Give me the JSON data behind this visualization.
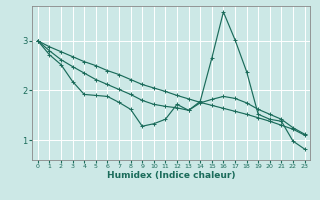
{
  "xlabel": "Humidex (Indice chaleur)",
  "bg_color": "#cce8e6",
  "grid_color": "#b0d8d5",
  "line_color": "#1a6b5a",
  "xlim": [
    -0.5,
    23.5
  ],
  "ylim": [
    0.6,
    3.7
  ],
  "yticks": [
    1,
    2,
    3
  ],
  "xticks": [
    0,
    1,
    2,
    3,
    4,
    5,
    6,
    7,
    8,
    9,
    10,
    11,
    12,
    13,
    14,
    15,
    16,
    17,
    18,
    19,
    20,
    21,
    22,
    23
  ],
  "s1_x": [
    0,
    1,
    2,
    3,
    4,
    5,
    6,
    7,
    8,
    9,
    10,
    11,
    12,
    13,
    14,
    15,
    16,
    17,
    18,
    19,
    20,
    21,
    22,
    23
  ],
  "s1_y": [
    3.0,
    2.72,
    2.52,
    2.18,
    1.92,
    1.9,
    1.88,
    1.76,
    1.62,
    1.28,
    1.33,
    1.42,
    1.72,
    1.6,
    1.78,
    2.65,
    3.58,
    3.02,
    2.38,
    1.52,
    1.42,
    1.38,
    0.98,
    0.82
  ],
  "s2_x": [
    0,
    1,
    2,
    3,
    4,
    5,
    6,
    7,
    8,
    9,
    10,
    11,
    12,
    13,
    14,
    15,
    16,
    17,
    18,
    19,
    20,
    21,
    22,
    23
  ],
  "s2_y": [
    3.0,
    2.8,
    2.62,
    2.48,
    2.35,
    2.22,
    2.12,
    2.02,
    1.92,
    1.8,
    1.72,
    1.68,
    1.65,
    1.6,
    1.75,
    1.82,
    1.88,
    1.84,
    1.75,
    1.62,
    1.52,
    1.42,
    1.25,
    1.12
  ],
  "s3_x": [
    0,
    1,
    2,
    3,
    4,
    5,
    6,
    7,
    8,
    9,
    10,
    11,
    12,
    13,
    14,
    15,
    16,
    17,
    18,
    19,
    20,
    21,
    22,
    23
  ],
  "s3_y": [
    3.0,
    2.88,
    2.78,
    2.68,
    2.58,
    2.5,
    2.4,
    2.32,
    2.22,
    2.12,
    2.05,
    1.98,
    1.9,
    1.83,
    1.76,
    1.7,
    1.64,
    1.58,
    1.52,
    1.45,
    1.38,
    1.3,
    1.22,
    1.1
  ]
}
